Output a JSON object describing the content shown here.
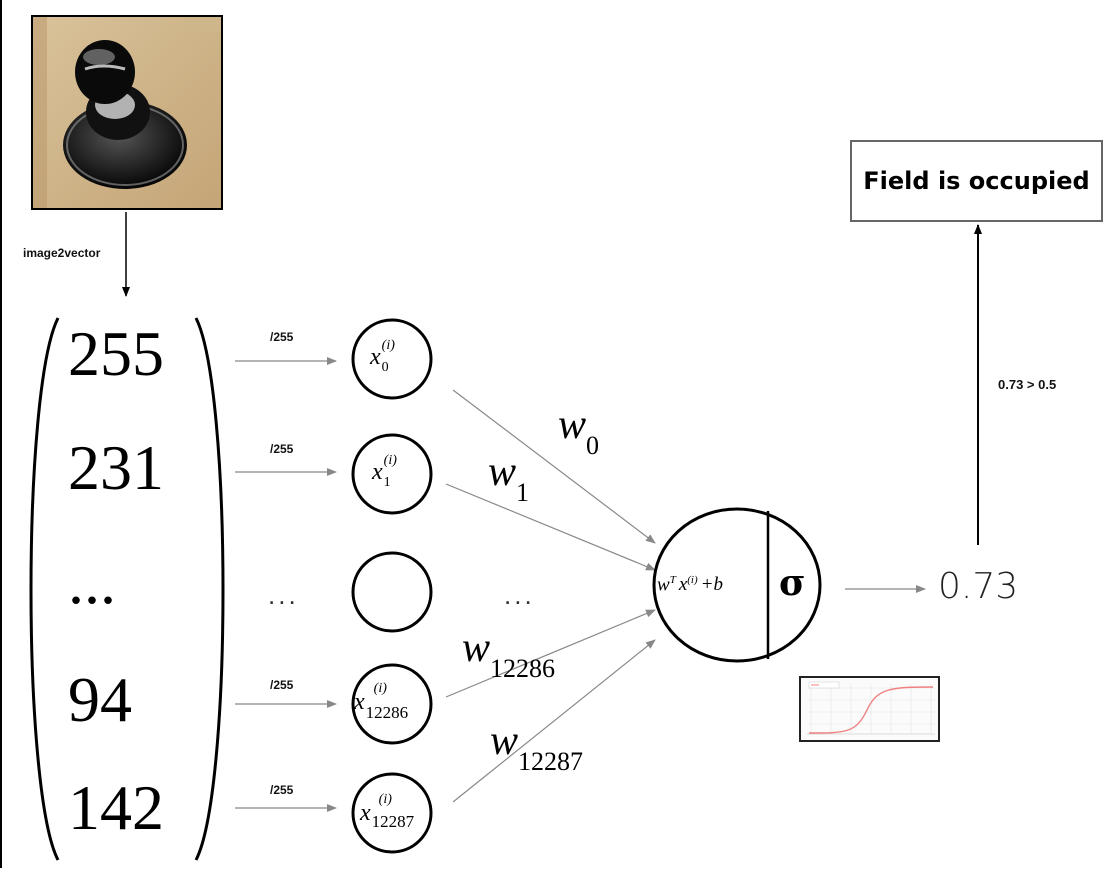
{
  "image_step": {
    "label": "image2vector"
  },
  "pixel_vector": {
    "values": [
      "255",
      "231",
      "...",
      "94",
      "142"
    ]
  },
  "normalization": {
    "label": "/255"
  },
  "nodes": {
    "x0": {
      "base": "x",
      "sup": "(i)",
      "sub": "0"
    },
    "x1": {
      "base": "x",
      "sup": "(i)",
      "sub": "1"
    },
    "x12286": {
      "base": "x",
      "sup": "(i)",
      "sub": "12286"
    },
    "x12287": {
      "base": "x",
      "sup": "(i)",
      "sub": "12287"
    },
    "ellipsis": "..."
  },
  "weights": {
    "w0": {
      "base": "w",
      "sub": "0"
    },
    "w1": {
      "base": "w",
      "sub": "1"
    },
    "w12286": {
      "base": "w",
      "sub": "12286"
    },
    "w12287": {
      "base": "w",
      "sub": "12287"
    },
    "ellipsis": "..."
  },
  "neuron": {
    "linear": "w",
    "linear_sup_T": "T",
    "linear_x": "x",
    "linear_sup_i": "(i)",
    "linear_tail": "+b",
    "activation": "σ"
  },
  "output": {
    "value": "0.73",
    "threshold": "0.73 > 0.5"
  },
  "result": {
    "text": "Field is occupied"
  },
  "colors": {
    "arrow_gray": "#888888",
    "line_black": "#000000",
    "sigmoid_curve": "#f08080"
  }
}
